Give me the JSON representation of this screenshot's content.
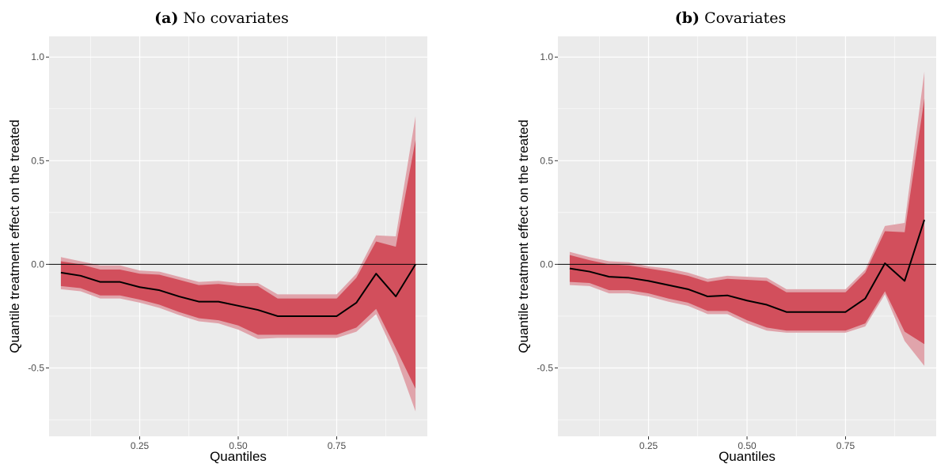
{
  "colors": {
    "panel_bg": "#ebebeb",
    "grid": "#ffffff",
    "band_outer": "#e0a4ab",
    "band_inner": "#d24f5c",
    "line": "#000000",
    "zero_line": "#000000"
  },
  "chart_data": [
    {
      "type": "area",
      "title_tag": "(a)",
      "title": "No covariates",
      "xlabel": "Quantiles",
      "ylabel": "Quantile treatment effect on the treated",
      "xlim": [
        0.02,
        0.98
      ],
      "ylim": [
        -0.83,
        1.1
      ],
      "x_ticks": [
        0.25,
        0.5,
        0.75
      ],
      "x_tick_labels": [
        "0.25",
        "0.50",
        "0.75"
      ],
      "y_ticks": [
        -0.5,
        0.0,
        0.5,
        1.0
      ],
      "y_tick_labels": [
        "-0.5",
        "0.0",
        "0.5",
        "1.0"
      ],
      "reference_line": 0,
      "grid": true,
      "x": [
        0.05,
        0.1,
        0.15,
        0.2,
        0.25,
        0.3,
        0.35,
        0.4,
        0.45,
        0.5,
        0.55,
        0.6,
        0.65,
        0.7,
        0.75,
        0.8,
        0.85,
        0.9,
        0.95
      ],
      "series": [
        {
          "name": "",
          "role": "estimate",
          "values": [
            -0.04,
            -0.055,
            -0.085,
            -0.085,
            -0.11,
            -0.125,
            -0.155,
            -0.18,
            -0.18,
            -0.2,
            -0.22,
            -0.25,
            -0.25,
            -0.25,
            -0.25,
            -0.185,
            -0.045,
            -0.155,
            0.0
          ]
        },
        {
          "name": "",
          "role": "outer_band_upper",
          "values": [
            0.035,
            0.015,
            -0.005,
            -0.005,
            -0.03,
            -0.035,
            -0.06,
            -0.085,
            -0.08,
            -0.09,
            -0.09,
            -0.145,
            -0.145,
            -0.145,
            -0.145,
            -0.045,
            0.14,
            0.135,
            0.715
          ]
        },
        {
          "name": "",
          "role": "outer_band_lower",
          "values": [
            -0.12,
            -0.13,
            -0.165,
            -0.165,
            -0.185,
            -0.21,
            -0.245,
            -0.275,
            -0.285,
            -0.315,
            -0.36,
            -0.355,
            -0.355,
            -0.355,
            -0.355,
            -0.325,
            -0.24,
            -0.445,
            -0.71
          ]
        },
        {
          "name": "",
          "role": "inner_band_upper",
          "values": [
            0.015,
            0.0,
            -0.025,
            -0.025,
            -0.045,
            -0.05,
            -0.075,
            -0.1,
            -0.095,
            -0.105,
            -0.105,
            -0.165,
            -0.165,
            -0.165,
            -0.165,
            -0.065,
            0.11,
            0.085,
            0.6
          ]
        },
        {
          "name": "",
          "role": "inner_band_lower",
          "values": [
            -0.105,
            -0.115,
            -0.15,
            -0.15,
            -0.17,
            -0.195,
            -0.23,
            -0.26,
            -0.27,
            -0.295,
            -0.34,
            -0.34,
            -0.34,
            -0.34,
            -0.34,
            -0.305,
            -0.215,
            -0.405,
            -0.6
          ]
        }
      ]
    },
    {
      "type": "area",
      "title_tag": "(b)",
      "title": "Covariates",
      "xlabel": "Quantiles",
      "ylabel": "Quantile treatment effect on the treated",
      "xlim": [
        0.02,
        0.98
      ],
      "ylim": [
        -0.83,
        1.1
      ],
      "x_ticks": [
        0.25,
        0.5,
        0.75
      ],
      "x_tick_labels": [
        "0.25",
        "0.50",
        "0.75"
      ],
      "y_ticks": [
        -0.5,
        0.0,
        0.5,
        1.0
      ],
      "y_tick_labels": [
        "-0.5",
        "0.0",
        "0.5",
        "1.0"
      ],
      "reference_line": 0,
      "grid": true,
      "x": [
        0.05,
        0.1,
        0.15,
        0.2,
        0.25,
        0.3,
        0.35,
        0.4,
        0.45,
        0.5,
        0.55,
        0.6,
        0.65,
        0.7,
        0.75,
        0.8,
        0.85,
        0.9,
        0.95
      ],
      "series": [
        {
          "name": "",
          "role": "estimate",
          "values": [
            -0.02,
            -0.035,
            -0.06,
            -0.065,
            -0.08,
            -0.1,
            -0.12,
            -0.155,
            -0.15,
            -0.175,
            -0.195,
            -0.23,
            -0.23,
            -0.23,
            -0.23,
            -0.165,
            0.005,
            -0.08,
            0.215
          ]
        },
        {
          "name": "",
          "role": "outer_band_upper",
          "values": [
            0.06,
            0.035,
            0.015,
            0.01,
            -0.01,
            -0.02,
            -0.04,
            -0.07,
            -0.055,
            -0.06,
            -0.065,
            -0.12,
            -0.12,
            -0.12,
            -0.12,
            -0.025,
            0.185,
            0.2,
            0.93
          ]
        },
        {
          "name": "",
          "role": "outer_band_lower",
          "values": [
            -0.1,
            -0.105,
            -0.14,
            -0.14,
            -0.155,
            -0.18,
            -0.2,
            -0.24,
            -0.24,
            -0.285,
            -0.32,
            -0.33,
            -0.33,
            -0.33,
            -0.33,
            -0.3,
            -0.145,
            -0.37,
            -0.49
          ]
        },
        {
          "name": "",
          "role": "inner_band_upper",
          "values": [
            0.045,
            0.02,
            0.0,
            -0.005,
            -0.02,
            -0.035,
            -0.055,
            -0.085,
            -0.07,
            -0.075,
            -0.08,
            -0.135,
            -0.135,
            -0.135,
            -0.135,
            -0.04,
            0.16,
            0.155,
            0.8
          ]
        },
        {
          "name": "",
          "role": "inner_band_lower",
          "values": [
            -0.085,
            -0.09,
            -0.125,
            -0.125,
            -0.14,
            -0.165,
            -0.185,
            -0.225,
            -0.225,
            -0.27,
            -0.305,
            -0.32,
            -0.32,
            -0.32,
            -0.32,
            -0.285,
            -0.13,
            -0.325,
            -0.385
          ]
        }
      ]
    }
  ]
}
